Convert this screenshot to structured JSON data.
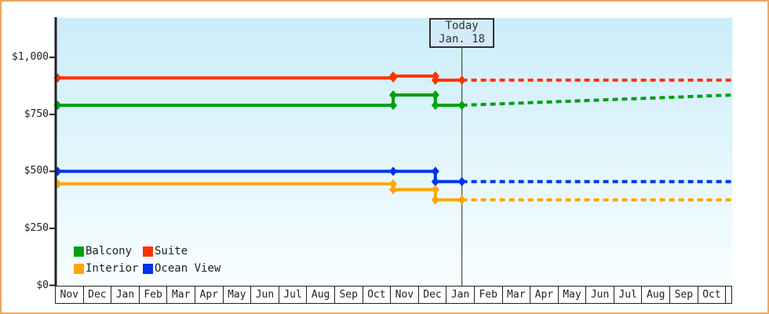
{
  "page": {
    "border_color": "#EBA75F",
    "background_color": "#FFFFFF",
    "plot_gradient_top": "#CBEDF9",
    "plot_gradient_bottom": "#F8FEFF"
  },
  "chart_data": {
    "type": "line",
    "title": "",
    "description": "Cabin price history by category with dotted future projection after today marker",
    "grid": "off",
    "y_axis": {
      "tick_labels": [
        "$0",
        "$250",
        "$500",
        "$750",
        "$1,000"
      ],
      "tick_values": [
        0,
        250,
        500,
        750,
        1000
      ],
      "range": [
        0,
        1175
      ]
    },
    "x_axis": {
      "tick_labels": [
        "Nov",
        "Dec",
        "Jan",
        "Feb",
        "Mar",
        "Apr",
        "May",
        "Jun",
        "Jul",
        "Aug",
        "Sep",
        "Oct",
        "Nov",
        "Dec",
        "Jan",
        "Feb",
        "Mar",
        "Apr",
        "May",
        "Jun",
        "Jul",
        "Aug",
        "Sep",
        "Oct"
      ]
    },
    "today": {
      "line1": "Today",
      "line2": "Jan. 18",
      "t_months": 14.56
    },
    "series": [
      {
        "name": "Suite",
        "color": "#FF3300",
        "solid_points": [
          {
            "t": 0.09,
            "v": 910
          },
          {
            "t": 12.1,
            "v": 910
          },
          {
            "t": 12.1,
            "v": 918
          },
          {
            "t": 13.61,
            "v": 918
          },
          {
            "t": 13.61,
            "v": 900
          },
          {
            "t": 14.56,
            "v": 900
          }
        ],
        "projection_points": [
          {
            "t": 14.56,
            "v": 900
          },
          {
            "t": 24.25,
            "v": 900
          }
        ]
      },
      {
        "name": "Balcony",
        "color": "#00A010",
        "solid_points": [
          {
            "t": 0.09,
            "v": 790
          },
          {
            "t": 12.1,
            "v": 790
          },
          {
            "t": 12.1,
            "v": 835
          },
          {
            "t": 13.61,
            "v": 835
          },
          {
            "t": 13.61,
            "v": 790
          },
          {
            "t": 14.56,
            "v": 790
          }
        ],
        "projection_points": [
          {
            "t": 14.56,
            "v": 790
          },
          {
            "t": 24.25,
            "v": 835
          }
        ]
      },
      {
        "name": "Ocean View",
        "color": "#0033EE",
        "solid_points": [
          {
            "t": 0.09,
            "v": 500
          },
          {
            "t": 12.1,
            "v": 500
          },
          {
            "t": 13.61,
            "v": 500
          },
          {
            "t": 13.61,
            "v": 455
          },
          {
            "t": 14.56,
            "v": 455
          }
        ],
        "projection_points": [
          {
            "t": 14.56,
            "v": 455
          },
          {
            "t": 24.25,
            "v": 455
          }
        ]
      },
      {
        "name": "Interior",
        "color": "#FFA500",
        "solid_points": [
          {
            "t": 0.09,
            "v": 445
          },
          {
            "t": 12.1,
            "v": 445
          },
          {
            "t": 12.1,
            "v": 420
          },
          {
            "t": 13.61,
            "v": 420
          },
          {
            "t": 13.61,
            "v": 375
          },
          {
            "t": 14.56,
            "v": 375
          }
        ],
        "projection_points": [
          {
            "t": 14.56,
            "v": 375
          },
          {
            "t": 24.25,
            "v": 375
          }
        ]
      }
    ],
    "legend": {
      "position": "inside-bottom-left",
      "items": [
        {
          "label": "Balcony",
          "color": "#00A010"
        },
        {
          "label": "Suite",
          "color": "#FF3300"
        },
        {
          "label": "Interior",
          "color": "#FFA500"
        },
        {
          "label": "Ocean View",
          "color": "#0033EE"
        }
      ]
    }
  }
}
